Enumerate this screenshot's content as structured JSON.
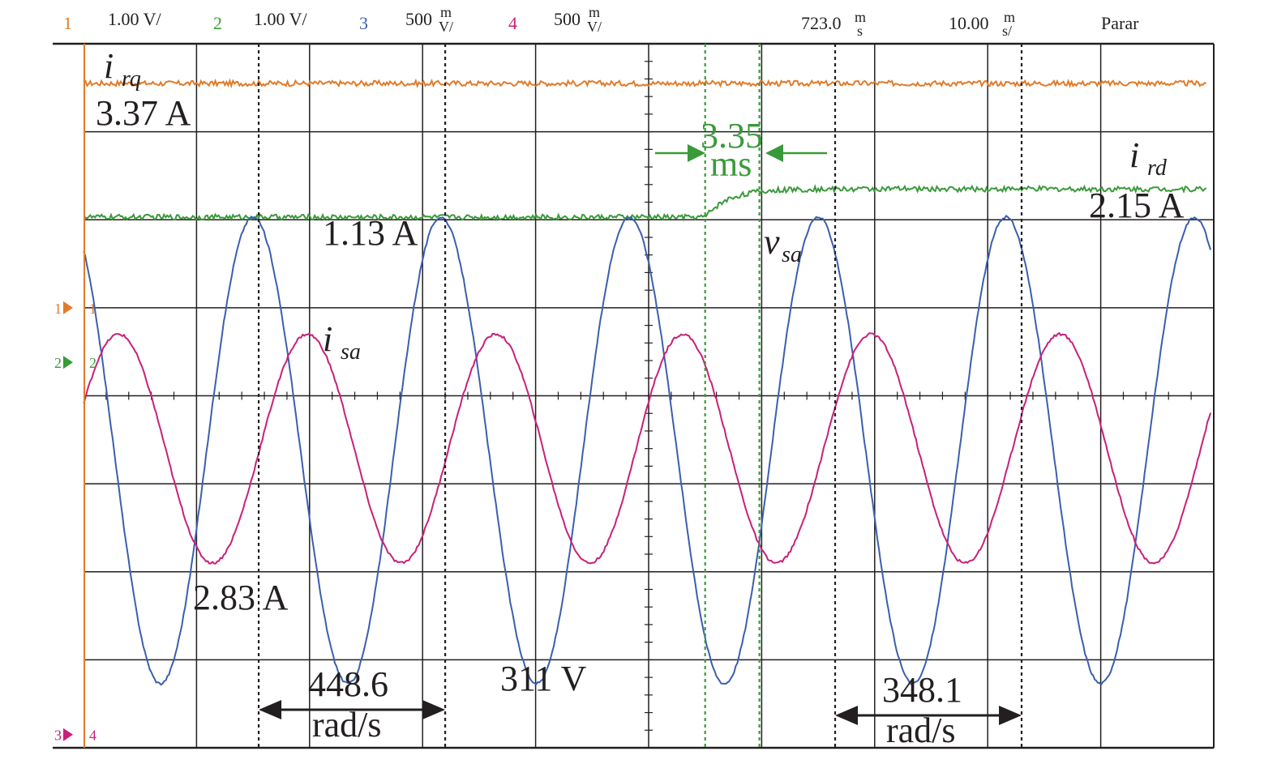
{
  "header": {
    "channels": [
      {
        "num": "1",
        "scale": "1.00 V/",
        "color": "#e07b2a"
      },
      {
        "num": "2",
        "scale": "1.00 V/",
        "color": "#3a9a3a"
      },
      {
        "num": "3",
        "scale": "500",
        "unit_top": "m",
        "unit_bottom": "V/",
        "color": "#3b5fae"
      },
      {
        "num": "4",
        "scale": "500",
        "unit_top": "m",
        "unit_bottom": "V/",
        "color": "#c8207a"
      }
    ],
    "time_offset": "723.0",
    "time_offset_unit_top": "m",
    "time_offset_unit_bottom": "s",
    "time_scale": "10.00",
    "time_scale_unit_top": "m",
    "time_scale_unit_bottom": "s/",
    "run_state": "Parar"
  },
  "markers": [
    {
      "ch": "1",
      "label": "1",
      "color": "#e07b2a"
    },
    {
      "ch": "2",
      "label": "2",
      "color": "#3a9a3a"
    },
    {
      "ch": "3",
      "label": "4",
      "color": "#c8207a"
    }
  ],
  "annotations": {
    "irq_label": "i",
    "irq_sub": "rq",
    "irq_value": "3.37 A",
    "ird_label": "i",
    "ird_sub": "rd",
    "ird_value": "2.15 A",
    "ird_before": "1.13 A",
    "vsa_label": "v",
    "vsa_sub": "sa",
    "isa_label": "i",
    "isa_sub": "sa",
    "isa_value": "2.83 A",
    "vsa_value": "311 V",
    "step_time_value": "3.35",
    "step_time_unit": "ms",
    "speed_before": "448.6",
    "speed_after": "348.1",
    "speed_unit": "rad/s"
  },
  "chart_data": {
    "type": "line",
    "x_divisions": 10,
    "y_divisions": 8,
    "series": [
      {
        "name": "irq",
        "color": "#e07b2a",
        "before_div": 3.55,
        "after_div": 3.55,
        "amplitude_div": 0
      },
      {
        "name": "ird",
        "color": "#3a9a3a",
        "before_div": 2.03,
        "after_div": 2.35,
        "step_at_div": 5.5,
        "amplitude_div": 0
      },
      {
        "name": "vsa",
        "color": "#3b5fae",
        "center_div": -0.62,
        "amplitude_div": 2.65,
        "peak_x_div": [
          1.5,
          3.16,
          4.83,
          6.5,
          8.16,
          9.83
        ],
        "trough_x_div": [
          0.68,
          2.34,
          4.01,
          5.67,
          7.34,
          9.0
        ]
      },
      {
        "name": "isa",
        "color": "#c8207a",
        "center_div": -0.6,
        "amplitude_div": 1.3,
        "peak_x_div": [
          0.31,
          1.98,
          3.65,
          5.3,
          6.97,
          8.64
        ],
        "trough_x_div": [
          1.14,
          2.81,
          4.48,
          6.13,
          7.8,
          9.47
        ]
      }
    ],
    "cursors_x_div": [
      1.55,
      3.2,
      5.5,
      5.98,
      6.65,
      8.3
    ]
  }
}
